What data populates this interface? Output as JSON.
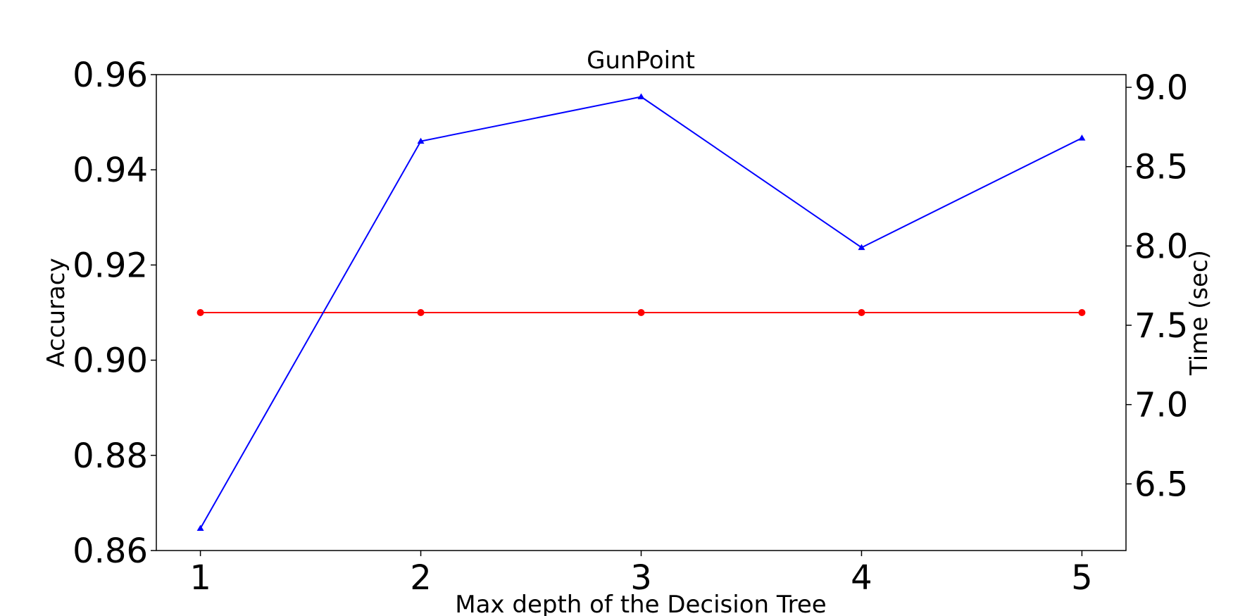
{
  "chart_data": {
    "type": "line",
    "title": "GunPoint",
    "xlabel": "Max depth of the Decision Tree",
    "ylabel": "Accuracy",
    "ylabel_right": "Time (sec)",
    "x": [
      1,
      2,
      3,
      4,
      5
    ],
    "x_tick_labels": [
      "1",
      "2",
      "3",
      "4",
      "5"
    ],
    "xlim": [
      0.8,
      5.2
    ],
    "ylim_left": [
      0.86,
      0.96
    ],
    "ylim_right": [
      6.08,
      9.08
    ],
    "y_ticks_left": [
      "0.86",
      "0.88",
      "0.90",
      "0.92",
      "0.94",
      "0.96"
    ],
    "y_ticks_right": [
      "6.5",
      "7.0",
      "7.5",
      "8.0",
      "8.5",
      "9.0"
    ],
    "grid": false,
    "series": [
      {
        "axis": "left",
        "values": [
          0.91,
          0.91,
          0.91,
          0.91,
          0.91
        ],
        "color": "#ff0000",
        "marker": "circle"
      },
      {
        "axis": "right",
        "values": [
          6.22,
          8.66,
          8.94,
          7.99,
          8.68
        ],
        "color": "#0000ff",
        "marker": "triangle"
      }
    ]
  }
}
